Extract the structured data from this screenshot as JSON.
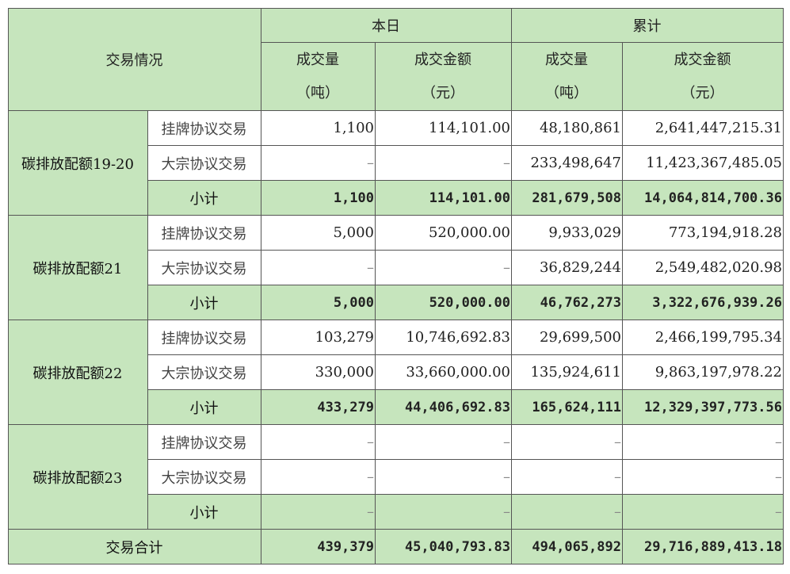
{
  "header": {
    "trade_label": "交易情况",
    "today_label": "本日",
    "cumulative_label": "累计",
    "volume_label": "成交量",
    "volume_unit": "（吨）",
    "amount_label": "成交金额",
    "amount_unit": "（元）"
  },
  "groups": [
    {
      "name": "碳排放配额19-20",
      "rows": [
        {
          "label": "挂牌协议交易",
          "day_vol": "1,100",
          "day_amt": "114,101.00",
          "cum_vol": "48,180,861",
          "cum_amt": "2,641,447,215.31"
        },
        {
          "label": "大宗协议交易",
          "day_vol": "–",
          "day_amt": "–",
          "cum_vol": "233,498,647",
          "cum_amt": "11,423,367,485.05"
        },
        {
          "label": "小计",
          "day_vol": "1,100",
          "day_amt": "114,101.00",
          "cum_vol": "281,679,508",
          "cum_amt": "14,064,814,700.36"
        }
      ]
    },
    {
      "name": "碳排放配额21",
      "rows": [
        {
          "label": "挂牌协议交易",
          "day_vol": "5,000",
          "day_amt": "520,000.00",
          "cum_vol": "9,933,029",
          "cum_amt": "773,194,918.28"
        },
        {
          "label": "大宗协议交易",
          "day_vol": "–",
          "day_amt": "–",
          "cum_vol": "36,829,244",
          "cum_amt": "2,549,482,020.98"
        },
        {
          "label": "小计",
          "day_vol": "5,000",
          "day_amt": "520,000.00",
          "cum_vol": "46,762,273",
          "cum_amt": "3,322,676,939.26"
        }
      ]
    },
    {
      "name": "碳排放配额22",
      "rows": [
        {
          "label": "挂牌协议交易",
          "day_vol": "103,279",
          "day_amt": "10,746,692.83",
          "cum_vol": "29,699,500",
          "cum_amt": "2,466,199,795.34"
        },
        {
          "label": "大宗协议交易",
          "day_vol": "330,000",
          "day_amt": "33,660,000.00",
          "cum_vol": "135,924,611",
          "cum_amt": "9,863,197,978.22"
        },
        {
          "label": "小计",
          "day_vol": "433,279",
          "day_amt": "44,406,692.83",
          "cum_vol": "165,624,111",
          "cum_amt": "12,329,397,773.56"
        }
      ]
    },
    {
      "name": "碳排放配额23",
      "rows": [
        {
          "label": "挂牌协议交易",
          "day_vol": "–",
          "day_amt": "–",
          "cum_vol": "–",
          "cum_amt": "–"
        },
        {
          "label": "大宗协议交易",
          "day_vol": "–",
          "day_amt": "–",
          "cum_vol": "–",
          "cum_amt": "–"
        },
        {
          "label": "小计",
          "day_vol": "–",
          "day_amt": "–",
          "cum_vol": "–",
          "cum_amt": "–"
        }
      ]
    }
  ],
  "total": {
    "label": "交易合计",
    "day_vol": "439,379",
    "day_amt": "45,040,793.83",
    "cum_vol": "494,065,892",
    "cum_amt": "29,716,889,413.18"
  },
  "colors": {
    "header_bg": "#c6e5bd",
    "border": "#555555"
  }
}
